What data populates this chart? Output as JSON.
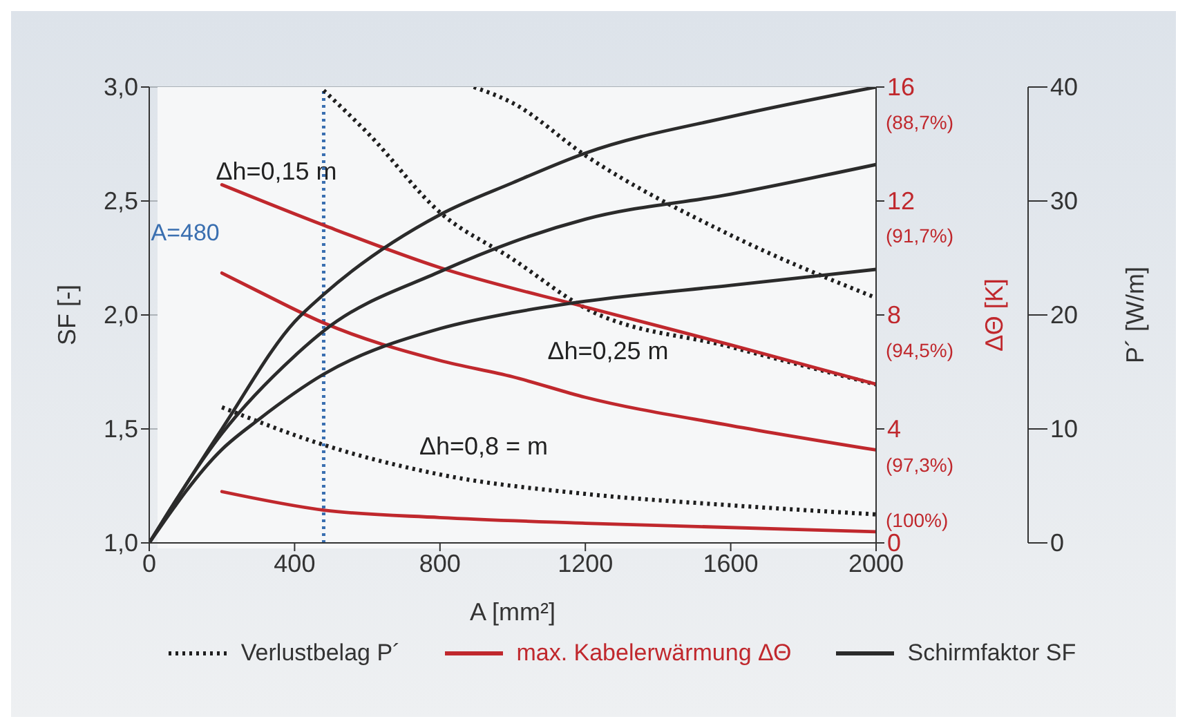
{
  "chart_data": {
    "type": "line",
    "xlabel": "A [mm²]",
    "ylabel": "SF [-]",
    "y2label": "ΔΘ [K]",
    "y3label": "P´ [W/m]",
    "xlim": [
      0,
      2000
    ],
    "xticks": [
      0,
      400,
      800,
      1200,
      1600,
      2000
    ],
    "ylim": [
      1,
      3
    ],
    "yticks": [
      {
        "value": 1,
        "label": "1,0"
      },
      {
        "value": 1.5,
        "label": "1,5"
      },
      {
        "value": 2,
        "label": "2,0"
      },
      {
        "value": 2.5,
        "label": "2,5"
      },
      {
        "value": 3,
        "label": "3,0"
      }
    ],
    "y2lim": [
      0,
      16
    ],
    "y2ticks": [
      0,
      4,
      8,
      12,
      16
    ],
    "y3lim": [
      0,
      40
    ],
    "y3ticks": [
      0,
      10,
      20,
      30,
      40
    ],
    "grid": true,
    "legend": "bottom",
    "marker": "none",
    "ref_lines": [
      {
        "axis": "x",
        "value": 480,
        "label": "A=480",
        "color": "#3a6fb0",
        "line_style": "dotted"
      }
    ],
    "annotations": [
      "Δh=0,15 m",
      "Δh=0,25 m",
      "Δh=0,8 = m",
      "(88,7%)",
      "(91,7%)",
      "(94,5%)",
      "(97,3%)",
      "(100%)"
    ],
    "series": [
      {
        "name": "Verlustbelag P´",
        "color": "#1e1e1e",
        "axis": "y3",
        "line_style": "dotted",
        "x": [
          480,
          600,
          800,
          1000,
          1200,
          1600,
          2000
        ],
        "values": [
          39.7,
          36,
          29,
          24.9,
          20.6,
          17.2,
          13.9
        ]
      },
      {
        "color": "#1e1e1e",
        "axis": "y3",
        "line_style": "dotted",
        "x": [
          893,
          1000,
          1200,
          1600,
          2000
        ],
        "values": [
          40,
          38.6,
          34,
          27,
          21.5
        ]
      },
      {
        "color": "#1e1e1e",
        "axis": "y3",
        "line_style": "dotted",
        "x": [
          200,
          480,
          800,
          1200,
          1600,
          2000
        ],
        "values": [
          11.9,
          8.6,
          6,
          4.3,
          3.3,
          2.5
        ]
      },
      {
        "name": "max. Kabelerwärmung ΔΘ",
        "color": "#c0282d",
        "axis": "y2",
        "line_style": "solid",
        "x": [
          200,
          480,
          800,
          1200,
          1600,
          2000
        ],
        "values": [
          12.57,
          11.15,
          9.66,
          8.28,
          6.95,
          5.57
        ]
      },
      {
        "color": "#c0282d",
        "axis": "y2",
        "line_style": "solid",
        "x": [
          200,
          300,
          480,
          800,
          1000,
          1200,
          1600,
          2000
        ],
        "values": [
          9.47,
          8.83,
          7.72,
          6.4,
          5.83,
          5.11,
          4.12,
          3.26
        ]
      },
      {
        "color": "#c0282d",
        "axis": "y2",
        "line_style": "solid",
        "x": [
          200,
          480,
          800,
          1200,
          2000
        ],
        "values": [
          1.8,
          1.15,
          0.89,
          0.69,
          0.39
        ]
      },
      {
        "name": "Schirmfaktor SF",
        "color": "#2b2b2b",
        "line_style": "solid",
        "x": [
          0,
          200,
          400,
          480,
          800,
          1000,
          1200,
          1600,
          2000
        ],
        "values": [
          1,
          1.5,
          1.97,
          2.09,
          2.44,
          2.58,
          2.71,
          2.87,
          3
        ]
      },
      {
        "color": "#2b2b2b",
        "line_style": "solid",
        "x": [
          0,
          200,
          400,
          480,
          800,
          1000,
          1200,
          1600,
          2000
        ],
        "values": [
          1,
          1.48,
          1.82,
          1.93,
          2.19,
          2.32,
          2.42,
          2.53,
          2.66
        ]
      },
      {
        "color": "#2b2b2b",
        "line_style": "solid",
        "x": [
          0,
          200,
          300,
          480,
          800,
          1000,
          1200,
          1600,
          2000
        ],
        "values": [
          1,
          1.41,
          1.54,
          1.74,
          1.94,
          2.01,
          2.06,
          2.13,
          2.2
        ]
      }
    ]
  }
}
